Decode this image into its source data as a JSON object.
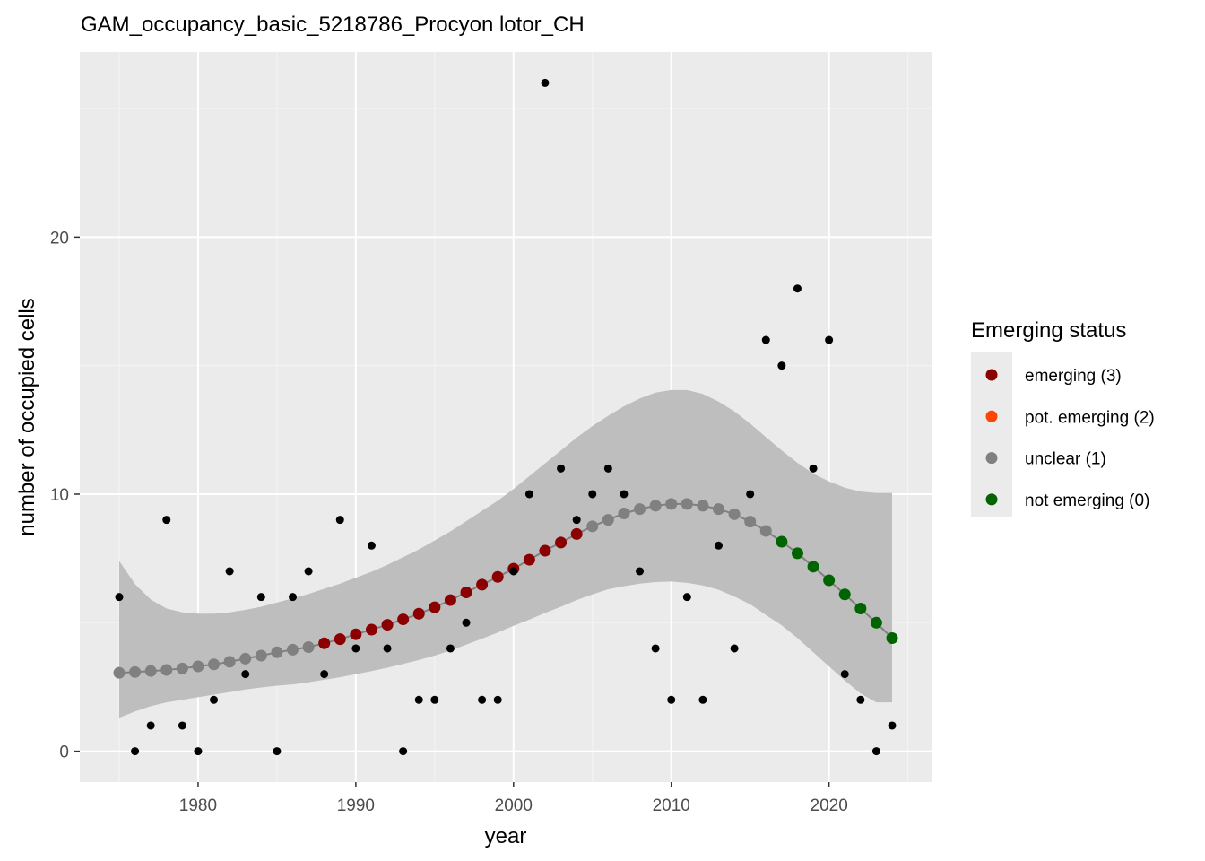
{
  "chart_data": {
    "type": "scatter",
    "title": "GAM_occupancy_basic_5218786_Procyon lotor_CH",
    "xlabel": "year",
    "ylabel": "number of occupied cells",
    "xlim": [
      1972.5,
      2026.5
    ],
    "ylim": [
      -1.2,
      27.2
    ],
    "x_ticks": [
      1980,
      1990,
      2000,
      2010,
      2020
    ],
    "y_ticks": [
      0,
      10,
      20
    ],
    "grid": true,
    "legend": {
      "title": "Emerging status",
      "placement": "right",
      "entries": [
        {
          "label": "emerging (3)",
          "color": "#8b0000"
        },
        {
          "label": "pot. emerging (2)",
          "color": "#ff4500"
        },
        {
          "label": "unclear (1)",
          "color": "#808080"
        },
        {
          "label": "not emerging (0)",
          "color": "#006400"
        }
      ]
    },
    "observed": {
      "color": "#000000",
      "x": [
        1975,
        1976,
        1977,
        1978,
        1979,
        1980,
        1981,
        1982,
        1983,
        1984,
        1985,
        1986,
        1987,
        1988,
        1989,
        1990,
        1991,
        1992,
        1993,
        1994,
        1995,
        1996,
        1997,
        1998,
        1999,
        2000,
        2001,
        2002,
        2003,
        2004,
        2005,
        2006,
        2007,
        2008,
        2009,
        2010,
        2011,
        2012,
        2013,
        2014,
        2015,
        2016,
        2017,
        2018,
        2019,
        2020,
        2021,
        2022,
        2023,
        2024
      ],
      "y": [
        6,
        0,
        1,
        9,
        1,
        0,
        2,
        7,
        3,
        6,
        0,
        6,
        7,
        3,
        9,
        4,
        8,
        4,
        0,
        2,
        2,
        4,
        5,
        2,
        2,
        7,
        10,
        26,
        11,
        9,
        10,
        11,
        10,
        7,
        4,
        2,
        6,
        2,
        8,
        4,
        10,
        16,
        15,
        18,
        11,
        16,
        3,
        2,
        0,
        1
      ]
    },
    "fitted": {
      "line_color": "#808080",
      "x": [
        1975,
        1976,
        1977,
        1978,
        1979,
        1980,
        1981,
        1982,
        1983,
        1984,
        1985,
        1986,
        1987,
        1988,
        1989,
        1990,
        1991,
        1992,
        1993,
        1994,
        1995,
        1996,
        1997,
        1998,
        1999,
        2000,
        2001,
        2002,
        2003,
        2004,
        2005,
        2006,
        2007,
        2008,
        2009,
        2010,
        2011,
        2012,
        2013,
        2014,
        2015,
        2016,
        2017,
        2018,
        2019,
        2020,
        2021,
        2022,
        2023,
        2024
      ],
      "y": [
        3.05,
        3.08,
        3.12,
        3.16,
        3.22,
        3.3,
        3.38,
        3.48,
        3.6,
        3.72,
        3.85,
        3.95,
        4.05,
        4.2,
        4.36,
        4.55,
        4.73,
        4.92,
        5.13,
        5.35,
        5.6,
        5.88,
        6.18,
        6.48,
        6.78,
        7.1,
        7.45,
        7.8,
        8.12,
        8.45,
        8.75,
        9.0,
        9.25,
        9.42,
        9.55,
        9.62,
        9.62,
        9.55,
        9.42,
        9.22,
        8.93,
        8.57,
        8.15,
        7.7,
        7.18,
        6.65,
        6.1,
        5.55,
        5.0,
        4.4
      ],
      "status": [
        "unclear (1)",
        "unclear (1)",
        "unclear (1)",
        "unclear (1)",
        "unclear (1)",
        "unclear (1)",
        "unclear (1)",
        "unclear (1)",
        "unclear (1)",
        "unclear (1)",
        "unclear (1)",
        "unclear (1)",
        "unclear (1)",
        "emerging (3)",
        "emerging (3)",
        "emerging (3)",
        "emerging (3)",
        "emerging (3)",
        "emerging (3)",
        "emerging (3)",
        "emerging (3)",
        "emerging (3)",
        "emerging (3)",
        "emerging (3)",
        "emerging (3)",
        "emerging (3)",
        "emerging (3)",
        "emerging (3)",
        "emerging (3)",
        "emerging (3)",
        "unclear (1)",
        "unclear (1)",
        "unclear (1)",
        "unclear (1)",
        "unclear (1)",
        "unclear (1)",
        "unclear (1)",
        "unclear (1)",
        "unclear (1)",
        "unclear (1)",
        "unclear (1)",
        "unclear (1)",
        "not emerging (0)",
        "not emerging (0)",
        "not emerging (0)",
        "not emerging (0)",
        "not emerging (0)",
        "not emerging (0)",
        "not emerging (0)",
        "not emerging (0)"
      ]
    },
    "confidence_band": {
      "color": "#bebebe",
      "x": [
        1975,
        1976,
        1977,
        1978,
        1979,
        1980,
        1981,
        1982,
        1983,
        1984,
        1985,
        1986,
        1987,
        1988,
        1989,
        1990,
        1991,
        1992,
        1993,
        1994,
        1995,
        1996,
        1997,
        1998,
        1999,
        2000,
        2001,
        2002,
        2003,
        2004,
        2005,
        2006,
        2007,
        2008,
        2009,
        2010,
        2011,
        2012,
        2013,
        2014,
        2015,
        2016,
        2017,
        2018,
        2019,
        2020,
        2021,
        2022,
        2023,
        2024
      ],
      "lower": [
        1.3,
        1.55,
        1.75,
        1.9,
        2.0,
        2.1,
        2.2,
        2.3,
        2.4,
        2.48,
        2.55,
        2.6,
        2.68,
        2.78,
        2.88,
        3.0,
        3.12,
        3.25,
        3.4,
        3.55,
        3.72,
        3.92,
        4.15,
        4.38,
        4.62,
        4.88,
        5.12,
        5.38,
        5.62,
        5.88,
        6.1,
        6.3,
        6.42,
        6.52,
        6.58,
        6.6,
        6.55,
        6.45,
        6.28,
        6.02,
        5.72,
        5.3,
        4.9,
        4.4,
        3.85,
        3.3,
        2.75,
        2.25,
        1.9,
        1.9
      ],
      "upper": [
        7.4,
        6.5,
        5.9,
        5.55,
        5.4,
        5.35,
        5.35,
        5.4,
        5.5,
        5.62,
        5.78,
        5.95,
        6.12,
        6.32,
        6.52,
        6.75,
        6.98,
        7.25,
        7.55,
        7.85,
        8.2,
        8.55,
        8.95,
        9.35,
        9.75,
        10.2,
        10.7,
        11.2,
        11.7,
        12.2,
        12.65,
        13.05,
        13.42,
        13.72,
        13.95,
        14.05,
        14.05,
        13.9,
        13.6,
        13.22,
        12.75,
        12.22,
        11.7,
        11.22,
        10.8,
        10.5,
        10.25,
        10.1,
        10.05,
        10.05
      ]
    }
  }
}
